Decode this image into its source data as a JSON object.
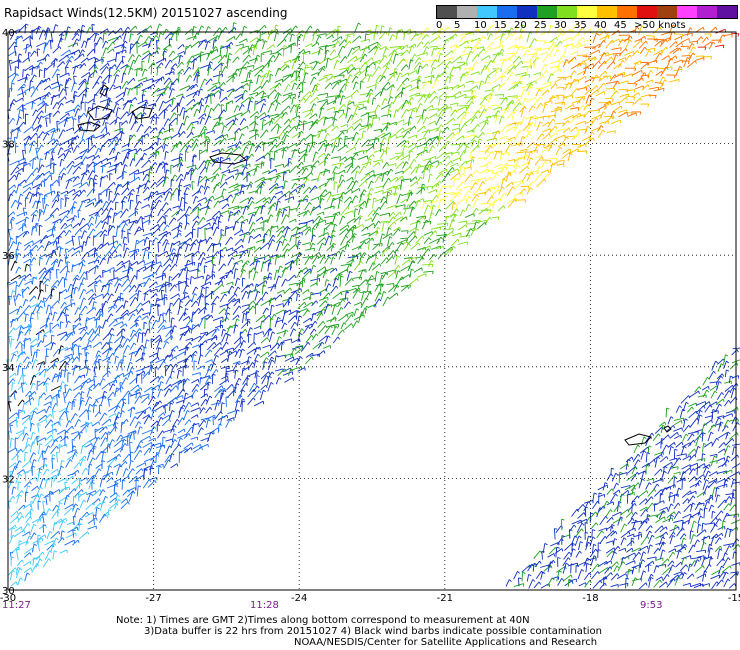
{
  "title": "Rapidsact Winds(12.5KM) 20151027 ascending",
  "legend": {
    "labels": [
      "0",
      "5",
      "10",
      "15",
      "20",
      "25",
      "30",
      "35",
      "40",
      "45",
      ">50 knots"
    ],
    "colors": [
      "#505050",
      "#b0b0b0",
      "#40c8ff",
      "#1a6cf0",
      "#1030c0",
      "#20a020",
      "#80e020",
      "#ffff40",
      "#ffc000",
      "#ff7000",
      "#e01010",
      "#a04010",
      "#ff40ff",
      "#b020d0",
      "#6010a0"
    ]
  },
  "axes": {
    "lon_labels": [
      "-30",
      "-27",
      "-24",
      "-21",
      "-18",
      "-15"
    ],
    "lat_labels": [
      "40",
      "38",
      "36",
      "34",
      "32",
      "30"
    ],
    "lon_range": [
      -30,
      -15
    ],
    "lat_range": [
      30,
      40
    ]
  },
  "times": {
    "t1": "11:27",
    "t2": "11:28",
    "t3": "9:53"
  },
  "notes": {
    "line1": "Note: 1) Times are GMT 2)Times along bottom correspond to measurement at 40N",
    "line2": "3)Data buffer is 22 hrs from 20151027 4) Black wind barbs indicate possible contamination",
    "line3": "NOAA/NESDIS/Center for Satellite Applications and Research"
  }
}
